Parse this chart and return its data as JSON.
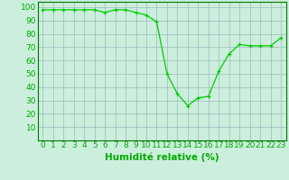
{
  "x": [
    0,
    1,
    2,
    3,
    4,
    5,
    6,
    7,
    8,
    9,
    10,
    11,
    12,
    13,
    14,
    15,
    16,
    17,
    18,
    19,
    20,
    21,
    22,
    23
  ],
  "y": [
    98,
    98,
    98,
    98,
    98,
    98,
    96,
    98,
    98,
    96,
    94,
    89,
    50,
    35,
    26,
    32,
    33,
    52,
    65,
    72,
    71,
    71,
    71,
    77
  ],
  "line_color": "#00CC00",
  "marker": "+",
  "marker_color": "#00CC00",
  "bg_color": "#CCEEDD",
  "grid_color": "#99BBBB",
  "xlabel": "Humidité relative (%)",
  "xlabel_color": "#00AA00",
  "ytick_vals": [
    10,
    20,
    30,
    40,
    50,
    60,
    70,
    80,
    90,
    100
  ],
  "ylim": [
    0,
    104
  ],
  "xlim": [
    -0.5,
    23.5
  ],
  "xtick_labels": [
    "0",
    "1",
    "2",
    "3",
    "4",
    "5",
    "6",
    "7",
    "8",
    "9",
    "10",
    "11",
    "12",
    "13",
    "14",
    "15",
    "16",
    "17",
    "18",
    "19",
    "20",
    "21",
    "22",
    "23"
  ],
  "tick_fontsize": 6.5,
  "xlabel_fontsize": 7.5,
  "tick_color": "#00AA00",
  "spine_color": "#007700"
}
